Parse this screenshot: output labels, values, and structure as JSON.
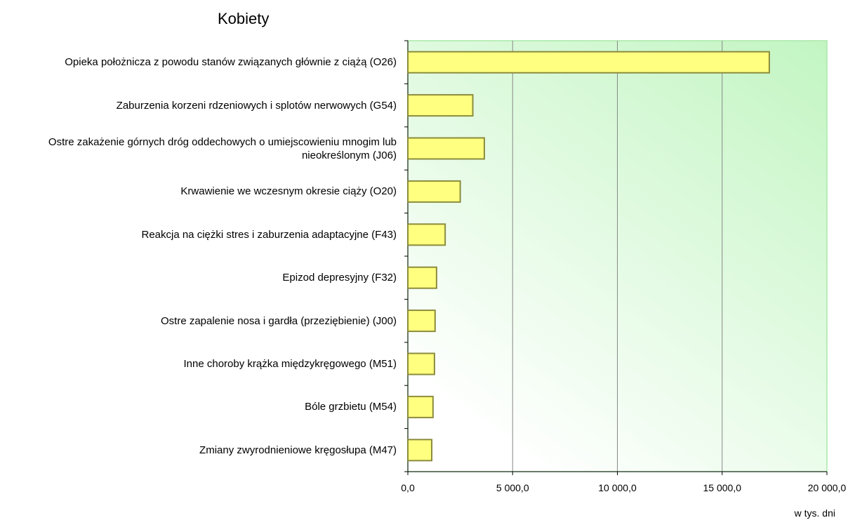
{
  "chart_data": {
    "type": "bar",
    "orientation": "horizontal",
    "title": "Kobiety",
    "x_label": "w tys. dni",
    "categories": [
      "Opieka położnicza z powodu stanów związanych głównie z ciążą (O26)",
      "Zaburzenia korzeni rdzeniowych i splotów nerwowych (G54)",
      "Ostre zakażenie górnych dróg oddechowych o umiejscowieniu mnogim lub nieokreślonym (J06)",
      "Krwawienie we wczesnym okresie ciąży (O20)",
      "Reakcja na ciężki stres i zaburzenia adaptacyjne (F43)",
      "Epizod depresyjny (F32)",
      "Ostre zapalenie nosa i gardła (przeziębienie) (J00)",
      "Inne choroby krążka międzykręgowego (M51)",
      "Bóle grzbietu (M54)",
      "Zmiany zwyrodnieniowe kręgosłupa (M47)"
    ],
    "values": [
      17250,
      3100,
      3650,
      2500,
      1780,
      1370,
      1300,
      1270,
      1200,
      1140
    ],
    "color": "#ffff80",
    "edge_color": "#8c8c3c",
    "xlim": [
      0,
      20000
    ],
    "xticks": [
      {
        "value": 0,
        "label": "0,0"
      },
      {
        "value": 5000,
        "label": "5 000,0"
      },
      {
        "value": 10000,
        "label": "10 000,0"
      },
      {
        "value": 15000,
        "label": "15 000,0"
      },
      {
        "value": 20000,
        "label": "20 000,0"
      }
    ],
    "grid": true
  }
}
